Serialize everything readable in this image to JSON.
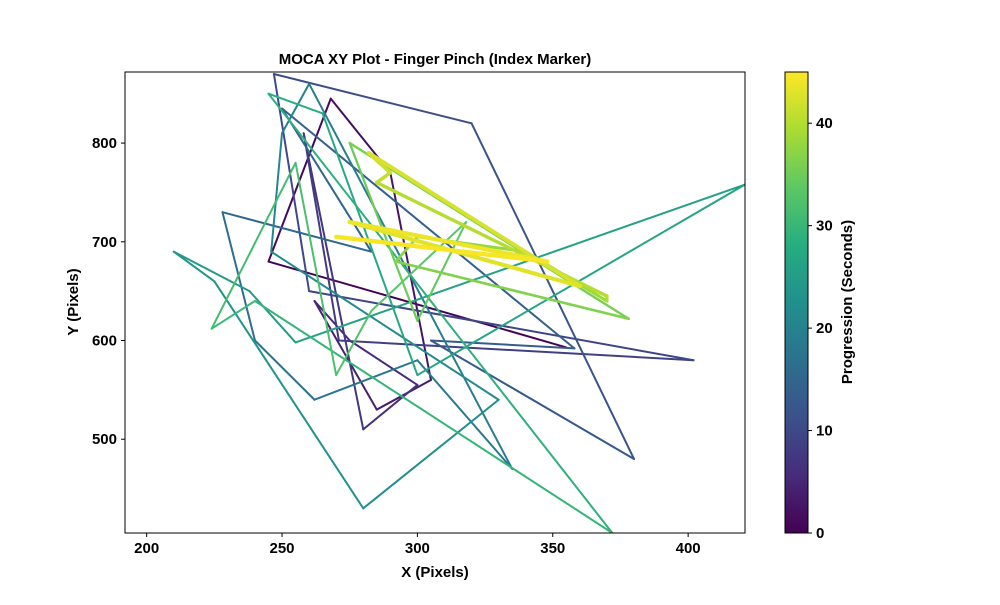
{
  "chart_data": {
    "type": "line",
    "title": "MOCA XY Plot - Finger Pinch (Index Marker)",
    "xlabel": "X (Pixels)",
    "ylabel": "Y (Pixels)",
    "xlim": [
      192,
      421
    ],
    "ylim": [
      405,
      872
    ],
    "x_ticks": [
      200,
      250,
      300,
      350,
      400
    ],
    "y_ticks": [
      500,
      600,
      700,
      800
    ],
    "grid": false,
    "legend": "none",
    "colorbar": {
      "label": "Progression (Seconds)",
      "range": [
        0,
        45
      ],
      "ticks": [
        0,
        10,
        20,
        30,
        40
      ],
      "colormap": "viridis"
    },
    "series": [
      {
        "color_by": "time_seconds",
        "t": [
          0,
          0.7,
          1.5,
          2.2,
          3.0,
          3.8,
          4.5,
          5.2,
          6.0,
          6.8,
          7.5,
          8.2,
          9.0,
          9.7,
          10.5,
          11.2,
          12.0,
          12.7,
          13.5,
          14.2,
          15.0,
          15.7,
          16.5,
          17.2,
          18.0,
          18.7,
          19.5,
          20.2,
          21.0,
          21.7,
          22.5,
          23.2,
          24.0,
          24.7,
          25.5,
          26.2,
          27.0,
          27.7,
          28.5,
          29.2,
          30.0,
          30.7,
          31.5,
          32.2,
          33.0,
          33.7,
          34.5,
          35.2,
          36.0,
          36.7,
          37.5,
          38.2,
          39.0,
          39.7,
          40.5,
          41.2,
          42.0,
          42.7,
          43.5,
          44.2,
          45.0
        ],
        "x": [
          355,
          245,
          268,
          290,
          305,
          285,
          262,
          275,
          300,
          280,
          258,
          271,
          402,
          260,
          247,
          320,
          380,
          305,
          358,
          250,
          283,
          228,
          240,
          262,
          300,
          335,
          260,
          250,
          246,
          330,
          280,
          225,
          210,
          238,
          255,
          421,
          300,
          265,
          245,
          372,
          240,
          224,
          255,
          270,
          283,
          318,
          300,
          275,
          378,
          292,
          300,
          340,
          370,
          370,
          285,
          290,
          282,
          360,
          275,
          348,
          270
        ],
        "y": [
          593,
          680,
          845,
          770,
          560,
          530,
          640,
          600,
          555,
          510,
          810,
          600,
          580,
          650,
          870,
          820,
          480,
          600,
          592,
          835,
          690,
          730,
          600,
          540,
          580,
          470,
          860,
          810,
          690,
          540,
          430,
          660,
          690,
          650,
          598,
          758,
          565,
          830,
          850,
          405,
          640,
          612,
          780,
          565,
          630,
          720,
          620,
          800,
          622,
          680,
          705,
          690,
          640,
          645,
          760,
          770,
          790,
          655,
          720,
          680,
          705
        ]
      }
    ]
  }
}
